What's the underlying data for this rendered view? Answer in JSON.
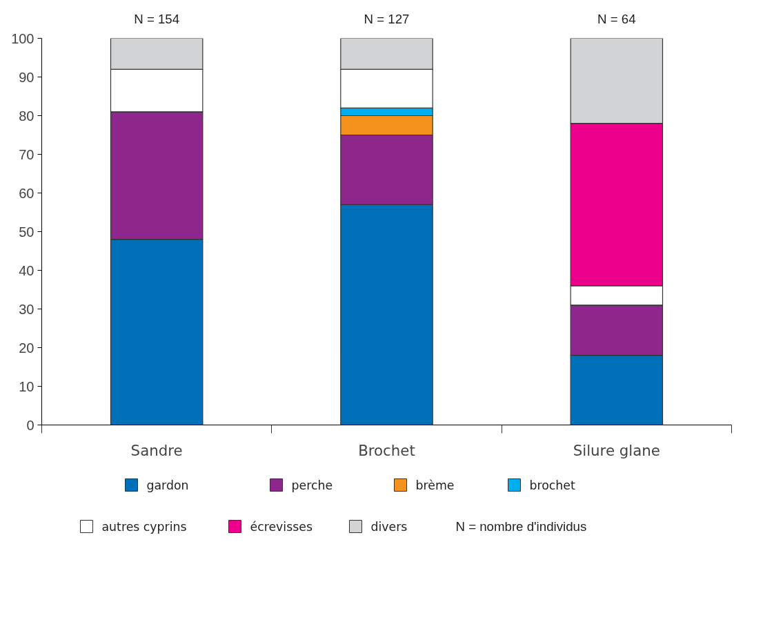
{
  "chart_data": {
    "type": "bar",
    "stacked": true,
    "categories": [
      "Sandre",
      "Brochet",
      "Silure glane"
    ],
    "series": [
      {
        "name": "gardon",
        "color": "#0070b8",
        "values": [
          48,
          57,
          18
        ]
      },
      {
        "name": "perche",
        "color": "#8e278c",
        "values": [
          33,
          18,
          13
        ]
      },
      {
        "name": "brème",
        "color": "#f5921e",
        "values": [
          0,
          5,
          0
        ]
      },
      {
        "name": "brochet",
        "color": "#00aeef",
        "values": [
          0,
          2,
          0
        ]
      },
      {
        "name": "autres cyprins",
        "color": "#ffffff",
        "values": [
          11,
          10,
          5
        ]
      },
      {
        "name": "écrevisses",
        "color": "#ec008c",
        "values": [
          0,
          0,
          42
        ]
      },
      {
        "name": "divers",
        "color": "#d1d3d4",
        "values": [
          8,
          8,
          22
        ]
      }
    ],
    "ylim": [
      0,
      100
    ],
    "yticks": [
      0,
      10,
      20,
      30,
      40,
      50,
      60,
      70,
      80,
      90,
      100
    ],
    "grid": false,
    "legend": "bottom",
    "annotations": [
      {
        "text": "N = 154",
        "x": "Sandre",
        "y": 100
      },
      {
        "text": "N = 127",
        "x": "Brochet",
        "y": 100
      },
      {
        "text": "N = 64",
        "x": "Silure glane",
        "y": 100
      },
      "N = nombre d'individus"
    ]
  }
}
